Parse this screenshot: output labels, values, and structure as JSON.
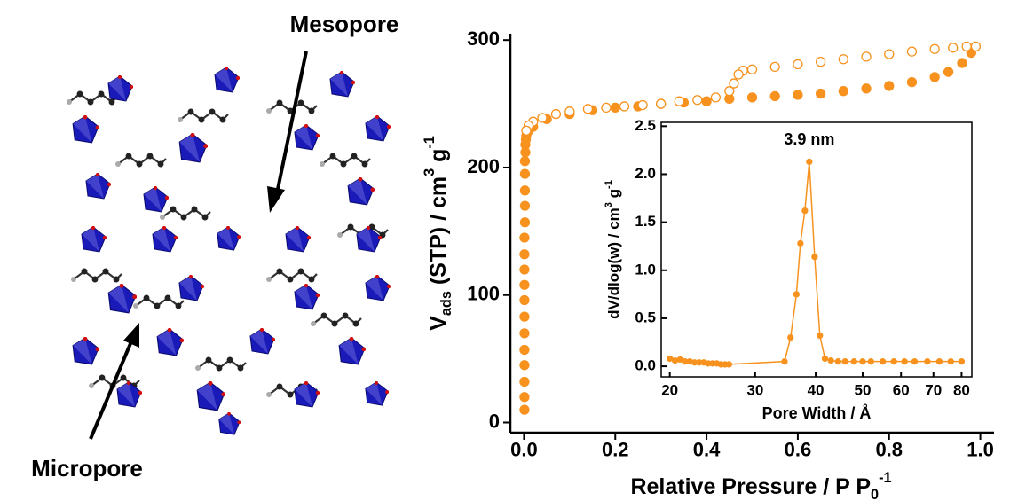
{
  "figure_labels": [
    "Mesopore",
    "Micropore"
  ],
  "chart_data": [
    {
      "type": "scatter",
      "xlabel": [
        {
          "text": "Relative Pressure / P P"
        },
        {
          "text": "0",
          "sub": true
        },
        {
          "text": "-1",
          "sup": true
        }
      ],
      "ylabel": [
        {
          "text": "V"
        },
        {
          "text": "ads",
          "sub": true
        },
        {
          "text": " (STP) / cm"
        },
        {
          "text": "3",
          "sup": true
        },
        {
          "text": " g"
        },
        {
          "text": "-1",
          "sup": true
        }
      ],
      "xlim": [
        -0.03,
        1.03
      ],
      "ylim": [
        -8,
        305
      ],
      "xticks": [
        {
          "value": 0,
          "label": "0.0"
        },
        0.2,
        0.4,
        0.6,
        0.8,
        {
          "value": 1,
          "label": "1.0"
        }
      ],
      "yticks": [
        0,
        100,
        200,
        300
      ],
      "series": [
        {
          "marker": "filled",
          "color": "#f7921e",
          "x": [
            0.001,
            0.001,
            0.001,
            0.001,
            0.001,
            0.001,
            0.001,
            0.001,
            0.001,
            0.001,
            0.001,
            0.001,
            0.002,
            0.002,
            0.002,
            0.002,
            0.002,
            0.003,
            0.003,
            0.004,
            0.005,
            0.008,
            0.02,
            0.05,
            0.1,
            0.15,
            0.2,
            0.25,
            0.3,
            0.35,
            0.4,
            0.45,
            0.5,
            0.55,
            0.6,
            0.65,
            0.7,
            0.75,
            0.8,
            0.85,
            0.9,
            0.93,
            0.96,
            0.98
          ],
          "values": [
            10,
            20,
            32,
            45,
            57,
            70,
            83,
            96,
            108,
            120,
            132,
            145,
            157,
            170,
            182,
            195,
            205,
            212,
            218,
            222,
            225,
            228,
            232,
            238,
            242,
            245,
            247,
            248,
            250,
            251,
            252,
            254,
            255,
            256,
            257,
            258,
            260,
            262,
            264,
            267,
            271,
            275,
            282,
            290
          ]
        },
        {
          "marker": "open",
          "color": "#f7921e",
          "x": [
            0.99,
            0.97,
            0.94,
            0.9,
            0.85,
            0.8,
            0.75,
            0.7,
            0.65,
            0.6,
            0.55,
            0.5,
            0.48,
            0.47,
            0.46,
            0.45,
            0.42,
            0.38,
            0.34,
            0.3,
            0.26,
            0.22,
            0.18,
            0.14,
            0.1,
            0.07,
            0.04,
            0.02,
            0.01,
            0.005
          ],
          "values": [
            295,
            295,
            294,
            293,
            291,
            289,
            287,
            285,
            283,
            281,
            279,
            277,
            276,
            273,
            266,
            260,
            255,
            253,
            252,
            250,
            249,
            248,
            247,
            246,
            244,
            242,
            239,
            236,
            233,
            229
          ]
        }
      ]
    },
    {
      "type": "line",
      "xscale": "log",
      "xlabel": [
        {
          "text": "Pore Width / Å"
        }
      ],
      "ylabel": [
        {
          "text": "dV/dlog(w) / cm"
        },
        {
          "text": "3",
          "sup": true
        },
        {
          "text": " g"
        },
        {
          "text": "-1",
          "sup": true
        }
      ],
      "annotation": "3.9 nm",
      "xlim": [
        19.2,
        84
      ],
      "ylim": [
        -0.11,
        2.54
      ],
      "xticks": [
        20,
        30,
        40,
        50,
        60,
        70,
        80
      ],
      "yticks": [
        {
          "value": 0,
          "label": "0.0"
        },
        0.5,
        {
          "value": 1,
          "label": "1.0"
        },
        1.5,
        {
          "value": 2,
          "label": "2.0"
        },
        2.5
      ],
      "series": [
        {
          "marker": "filled",
          "color": "#f7921e",
          "x": [
            20,
            20.5,
            21,
            21.5,
            22,
            22.5,
            23,
            23.5,
            24,
            24.5,
            25,
            25.5,
            26,
            26.5,
            34.5,
            35.5,
            36.5,
            37.2,
            38,
            38.8,
            39.8,
            40.8,
            41.8,
            43,
            44.5,
            46,
            48,
            50,
            52,
            55,
            58,
            61,
            64,
            68,
            72,
            76,
            80
          ],
          "values": [
            0.08,
            0.06,
            0.07,
            0.05,
            0.05,
            0.04,
            0.04,
            0.04,
            0.03,
            0.03,
            0.03,
            0.02,
            0.02,
            0.02,
            0.05,
            0.3,
            0.75,
            1.28,
            1.62,
            2.13,
            1.14,
            0.32,
            0.08,
            0.06,
            0.05,
            0.05,
            0.05,
            0.05,
            0.05,
            0.05,
            0.05,
            0.05,
            0.05,
            0.05,
            0.05,
            0.05,
            0.05
          ]
        }
      ]
    }
  ]
}
